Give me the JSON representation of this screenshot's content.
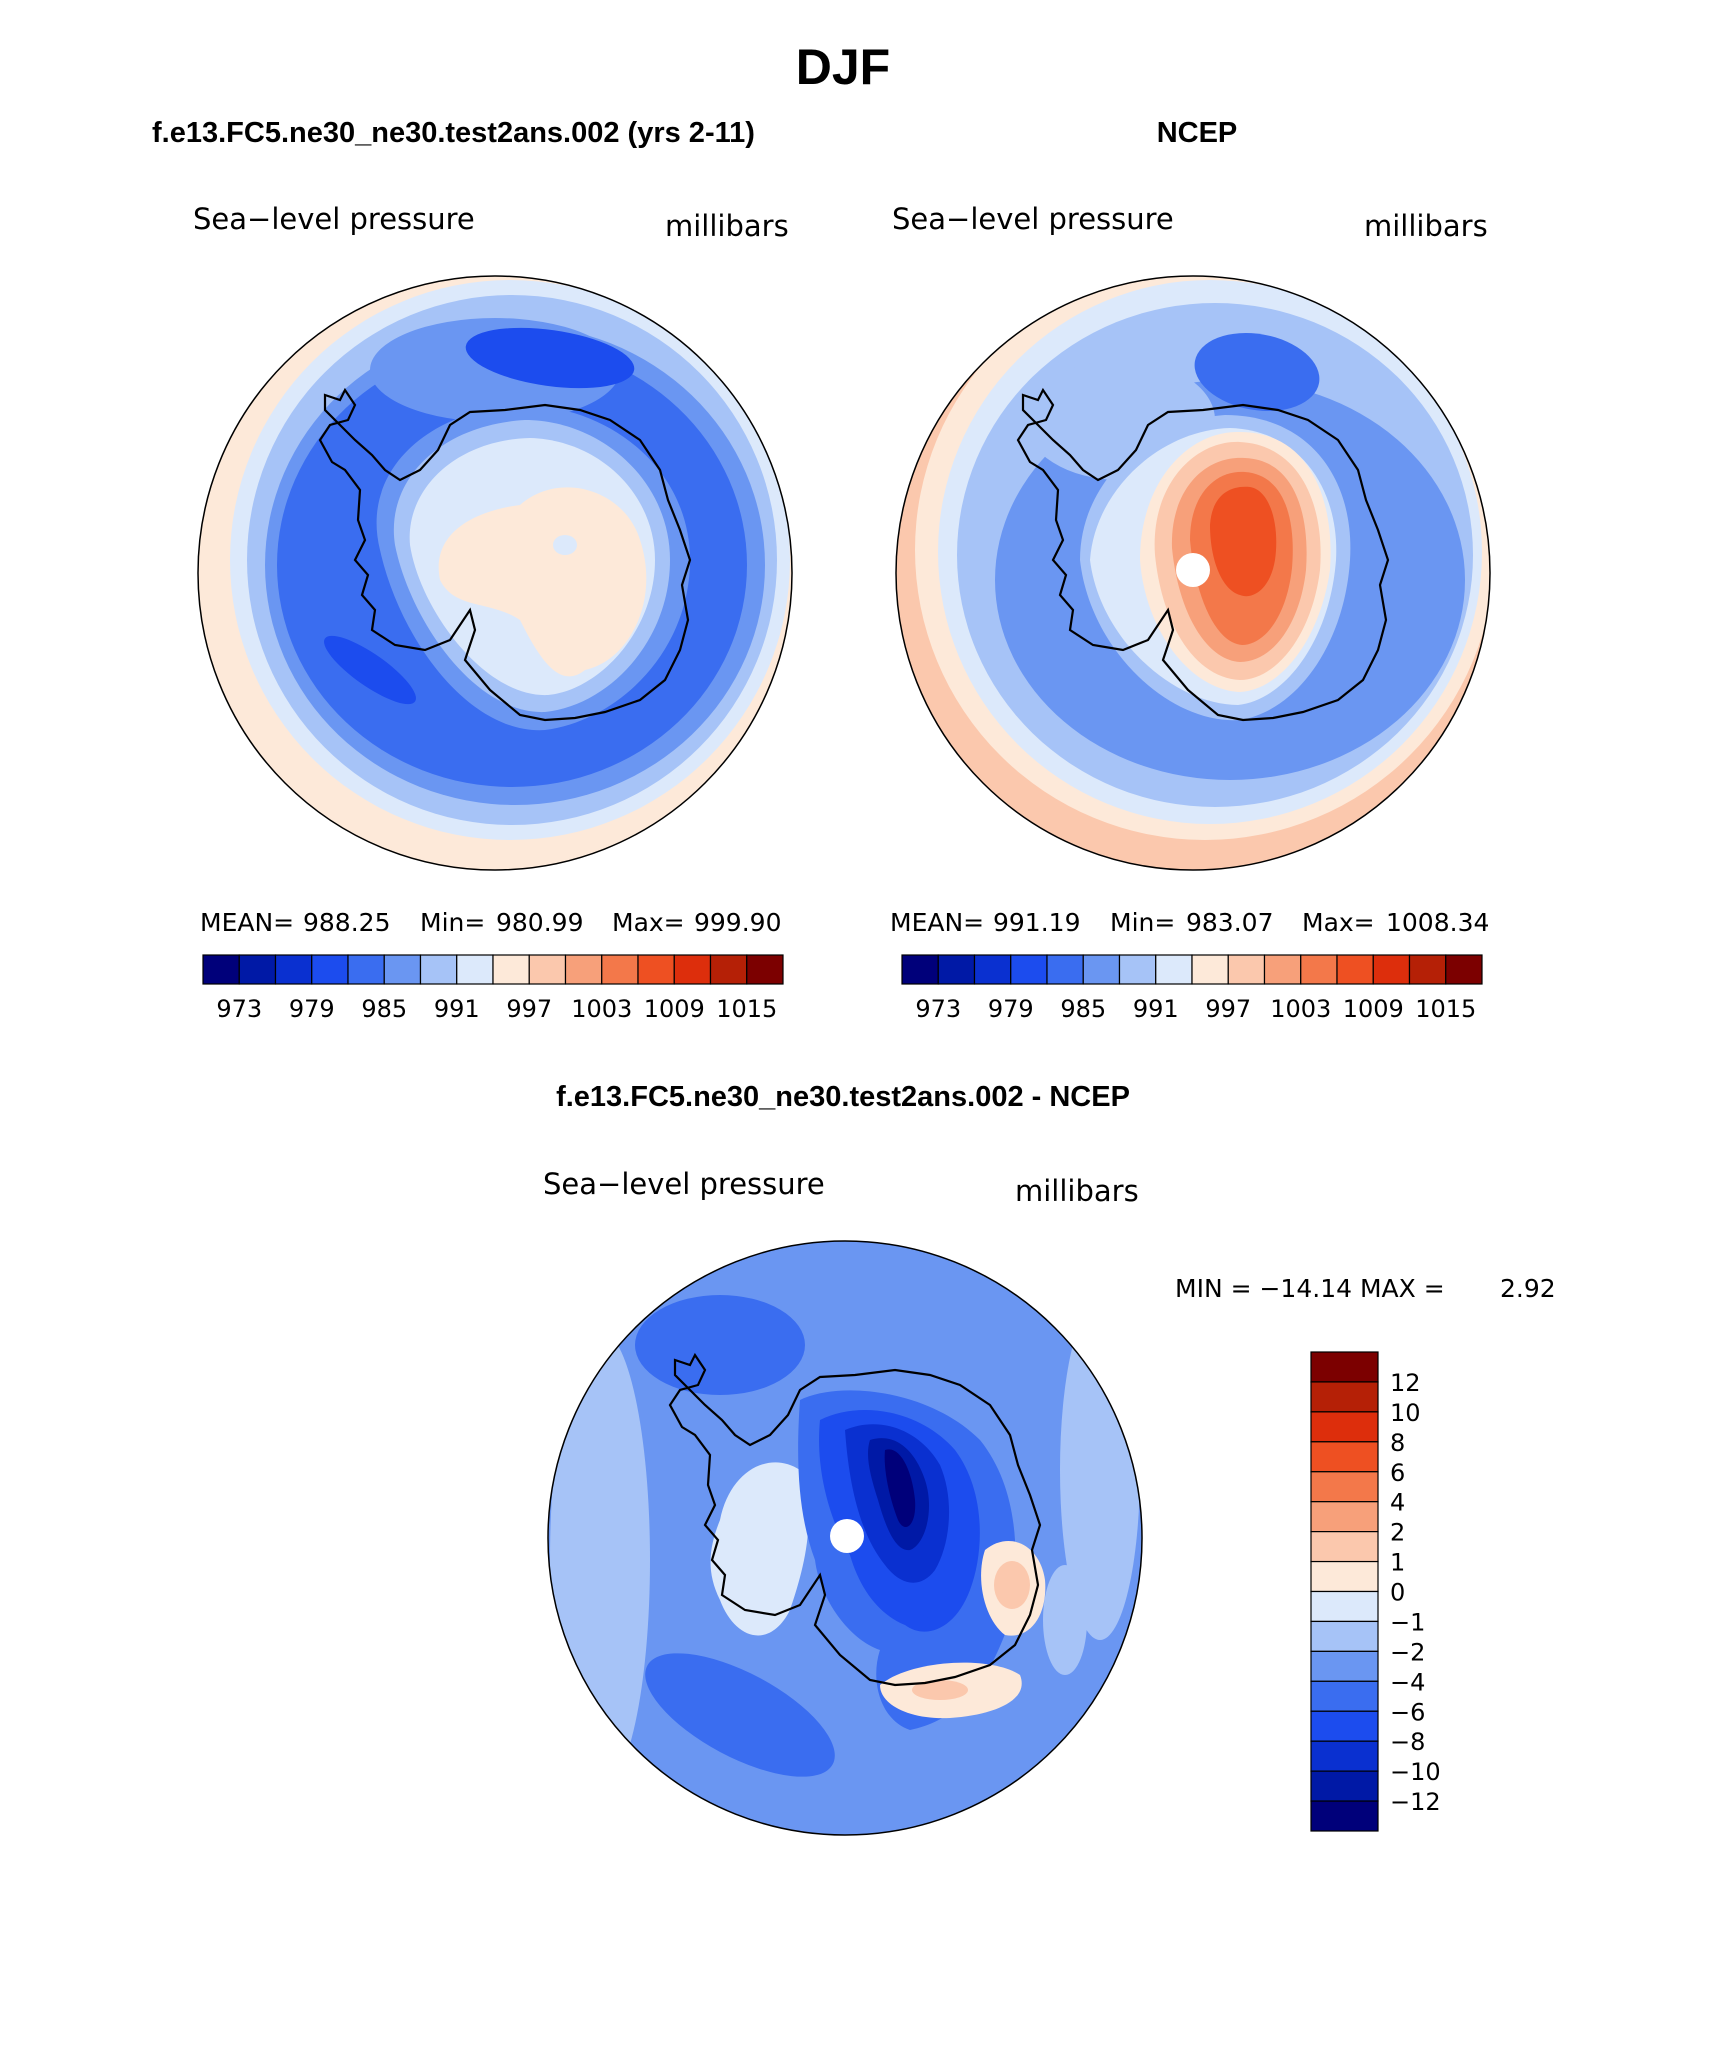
{
  "figure": {
    "title": "DJF"
  },
  "panels": {
    "model": {
      "header": "f.e13.FC5.ne30_ne30.test2ans.002 (yrs 2-11)",
      "variable": "Sea−level pressure",
      "units": "millibars",
      "mean_label": "MEAN=",
      "mean": "988.25",
      "min_label": "Min=",
      "min": "980.99",
      "max_label": "Max=",
      "max": "999.90"
    },
    "obs": {
      "header": "NCEP",
      "variable": "Sea−level pressure",
      "units": "millibars",
      "mean_label": "MEAN=",
      "mean": "991.19",
      "min_label": "Min=",
      "min": "983.07",
      "max_label": "Max=",
      "max": "1008.34"
    },
    "diff": {
      "header": "f.e13.FC5.ne30_ne30.test2ans.002 - NCEP",
      "variable": "Sea−level pressure",
      "units": "millibars",
      "minmax_text": "MIN = −14.14 MAX =",
      "max_value": "2.92"
    }
  },
  "colorbars": {
    "abs": {
      "labels": [
        "973",
        "979",
        "985",
        "991",
        "997",
        "1003",
        "1009",
        "1015"
      ],
      "colors": [
        "#00007a",
        "#0019a6",
        "#0a30d0",
        "#1c4cee",
        "#3a6df0",
        "#6a96f2",
        "#a6c3f7",
        "#dce9fb",
        "#fde9d9",
        "#fbc8ad",
        "#f7a07a",
        "#f3784a",
        "#ee5022",
        "#dd2e0c",
        "#b52006",
        "#7c0000"
      ]
    },
    "diff": {
      "labels": [
        "12",
        "10",
        "8",
        "6",
        "4",
        "2",
        "1",
        "0",
        "−1",
        "−2",
        "−4",
        "−6",
        "−8",
        "−10",
        "−12"
      ],
      "colors": [
        "#7c0000",
        "#b52006",
        "#dd2e0c",
        "#ee5022",
        "#f3784a",
        "#f7a07a",
        "#fbc8ad",
        "#fde9d9",
        "#dce9fb",
        "#a6c3f7",
        "#6a96f2",
        "#3a6df0",
        "#1c4cee",
        "#0a30d0",
        "#0019a6",
        "#00007a"
      ]
    }
  }
}
